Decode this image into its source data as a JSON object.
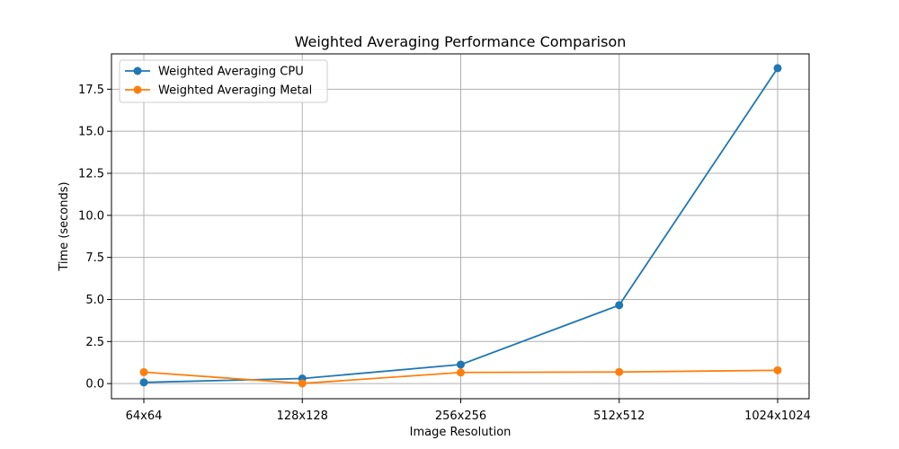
{
  "chart_data": {
    "type": "line",
    "title": "Weighted Averaging Performance Comparison",
    "xlabel": "Image Resolution",
    "ylabel": "Time (seconds)",
    "categories": [
      "64x64",
      "128x128",
      "256x256",
      "512x512",
      "1024x1024"
    ],
    "yticks": [
      "0.0",
      "2.5",
      "5.0",
      "7.5",
      "10.0",
      "12.5",
      "15.0",
      "17.5"
    ],
    "ylim": [
      -0.9,
      19.6
    ],
    "grid": true,
    "legend_position": "top-left",
    "series": [
      {
        "name": "Weighted Averaging CPU",
        "color": "#1f77b4",
        "values": [
          0.07,
          0.3,
          1.13,
          4.66,
          18.75
        ]
      },
      {
        "name": "Weighted Averaging Metal",
        "color": "#ff7f0e",
        "values": [
          0.68,
          0.01,
          0.66,
          0.69,
          0.79
        ]
      }
    ]
  }
}
